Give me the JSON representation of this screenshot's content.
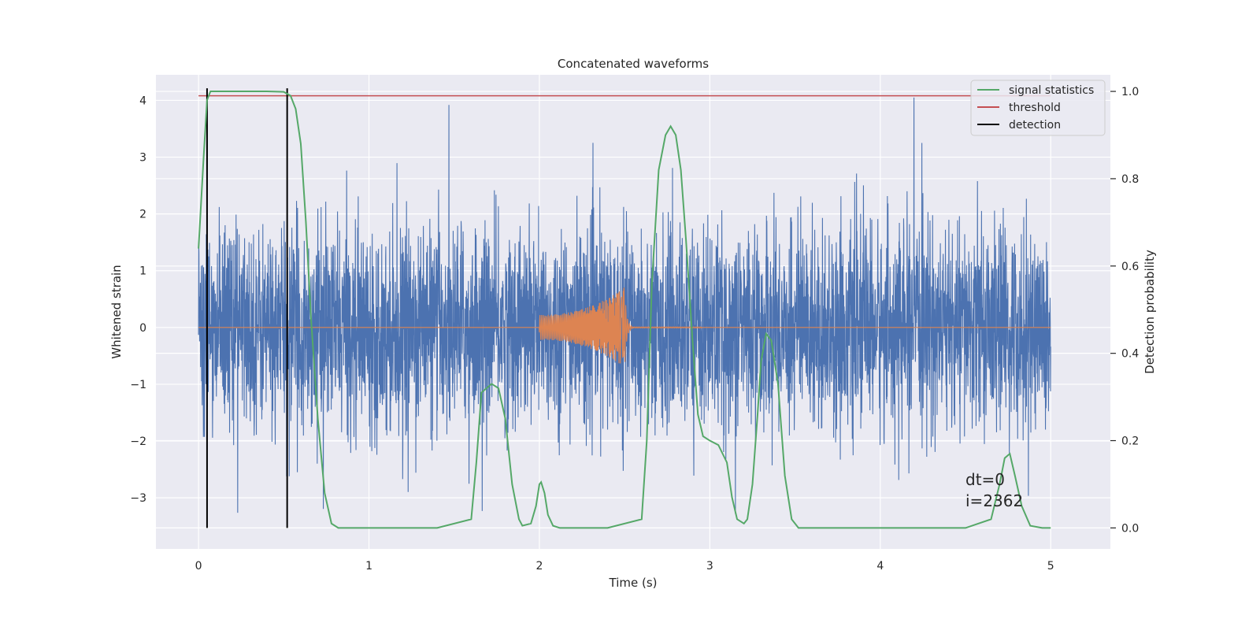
{
  "chart_data": {
    "type": "line",
    "title": "Concatenated waveforms",
    "xlabel": "Time (s)",
    "ylabel": "Whitened strain",
    "y2label": "Detection probability",
    "xlim": [
      -0.25,
      5.35
    ],
    "ylim": [
      -3.9,
      4.45
    ],
    "y2lim": [
      -0.048,
      1.038
    ],
    "xticks": [
      0,
      1,
      2,
      3,
      4,
      5
    ],
    "yticks": [
      -3,
      -2,
      -1,
      0,
      1,
      2,
      3,
      4
    ],
    "y2ticks": [
      0.0,
      0.2,
      0.4,
      0.6,
      0.8,
      1.0
    ],
    "grid": true,
    "legend_position": "top-right",
    "colors": {
      "background": "#eaeaf2",
      "strain": "#4c72b0",
      "injection": "#dd8452",
      "signal_statistics": "#55a868",
      "threshold": "#c44e52",
      "detection": "#000000"
    },
    "series": [
      {
        "name": "signal statistics",
        "axis": "right",
        "x": [
          0.0,
          0.03,
          0.05,
          0.07,
          0.1,
          0.2,
          0.3,
          0.4,
          0.5,
          0.54,
          0.57,
          0.6,
          0.63,
          0.66,
          0.7,
          0.74,
          0.78,
          0.82,
          1.0,
          1.4,
          1.6,
          1.63,
          1.66,
          1.72,
          1.76,
          1.8,
          1.84,
          1.88,
          1.9,
          1.95,
          1.98,
          2.0,
          2.01,
          2.03,
          2.05,
          2.08,
          2.12,
          2.2,
          2.4,
          2.6,
          2.63,
          2.66,
          2.7,
          2.74,
          2.77,
          2.8,
          2.83,
          2.86,
          2.9,
          2.93,
          2.96,
          3.0,
          3.05,
          3.1,
          3.13,
          3.16,
          3.2,
          3.22,
          3.25,
          3.28,
          3.3,
          3.33,
          3.36,
          3.4,
          3.44,
          3.48,
          3.52,
          3.6,
          4.0,
          4.5,
          4.65,
          4.7,
          4.73,
          4.76,
          4.79,
          4.83,
          4.88,
          4.95,
          5.0
        ],
        "y": [
          0.64,
          0.85,
          0.98,
          1.0,
          1.0,
          1.0,
          1.0,
          1.0,
          0.999,
          0.99,
          0.96,
          0.88,
          0.7,
          0.48,
          0.25,
          0.08,
          0.01,
          0.0,
          0.0,
          0.0,
          0.02,
          0.15,
          0.31,
          0.33,
          0.32,
          0.25,
          0.1,
          0.02,
          0.005,
          0.01,
          0.05,
          0.1,
          0.105,
          0.08,
          0.03,
          0.005,
          0.0,
          0.0,
          0.0,
          0.02,
          0.2,
          0.56,
          0.82,
          0.9,
          0.92,
          0.9,
          0.82,
          0.66,
          0.42,
          0.26,
          0.21,
          0.2,
          0.19,
          0.15,
          0.07,
          0.02,
          0.01,
          0.02,
          0.1,
          0.26,
          0.38,
          0.445,
          0.43,
          0.33,
          0.12,
          0.02,
          0.0,
          0.0,
          0.0,
          0.0,
          0.02,
          0.1,
          0.16,
          0.17,
          0.12,
          0.05,
          0.005,
          0.0,
          0.0
        ]
      },
      {
        "name": "threshold",
        "axis": "right",
        "x": [
          0.0,
          5.0
        ],
        "y": [
          0.99,
          0.99
        ]
      },
      {
        "name": "detection",
        "axis": "right",
        "x": [
          0.05,
          0.52
        ],
        "y": [
          0.0,
          1.0
        ]
      }
    ],
    "annotations": [
      "dt=0",
      "i=2362"
    ]
  }
}
